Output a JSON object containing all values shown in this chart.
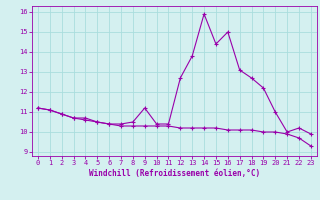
{
  "xlabel": "Windchill (Refroidissement éolien,°C)",
  "x": [
    0,
    1,
    2,
    3,
    4,
    5,
    6,
    7,
    8,
    9,
    10,
    11,
    12,
    13,
    14,
    15,
    16,
    17,
    18,
    19,
    20,
    21,
    22,
    23
  ],
  "line1": [
    11.2,
    11.1,
    10.9,
    10.7,
    10.7,
    10.5,
    10.4,
    10.4,
    10.5,
    11.2,
    10.4,
    10.4,
    12.7,
    13.8,
    15.9,
    14.4,
    15.0,
    13.1,
    12.7,
    12.2,
    11.0,
    10.0,
    10.2,
    9.9
  ],
  "line2": [
    11.2,
    11.1,
    10.9,
    10.7,
    10.6,
    10.5,
    10.4,
    10.3,
    10.3,
    10.3,
    10.3,
    10.3,
    10.2,
    10.2,
    10.2,
    10.2,
    10.1,
    10.1,
    10.1,
    10.0,
    10.0,
    9.9,
    9.7,
    9.3
  ],
  "line_color": "#9900aa",
  "bg_color": "#d4f0f0",
  "grid_color": "#aadddd",
  "ylim": [
    8.8,
    16.3
  ],
  "yticks": [
    9,
    10,
    11,
    12,
    13,
    14,
    15,
    16
  ],
  "xlim": [
    -0.5,
    23.5
  ],
  "tick_fontsize": 5.0,
  "xlabel_fontsize": 5.5
}
